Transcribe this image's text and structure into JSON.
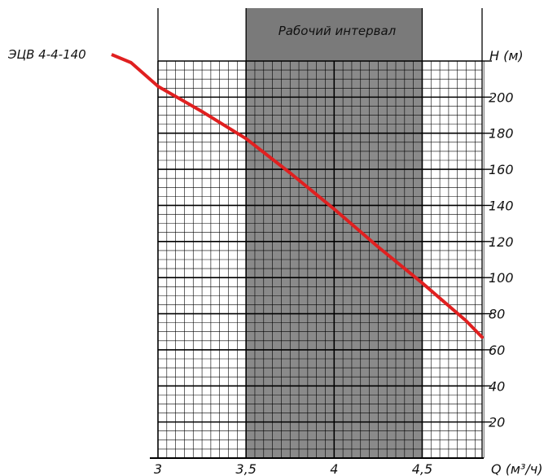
{
  "chart_data": {
    "type": "line",
    "band_label": "Рабочий интервал",
    "series": [
      {
        "name": "ЭЦВ 4-4-140",
        "x": [
          3.0,
          3.25,
          3.5,
          3.75,
          4.0,
          4.25,
          4.5,
          4.75,
          4.84
        ],
        "y": [
          206,
          192,
          177,
          158,
          138,
          117,
          97,
          76,
          67
        ]
      }
    ],
    "working_range": [
      3.5,
      4.5
    ],
    "x_ticks": [
      "3",
      "3,5",
      "4",
      "4,5"
    ],
    "x_tick_values": [
      3.0,
      3.5,
      4.0,
      4.5
    ],
    "y_ticks": [
      "20",
      "40",
      "60",
      "80",
      "100",
      "120",
      "140",
      "160",
      "180",
      "200"
    ],
    "y_tick_values": [
      20,
      40,
      60,
      80,
      100,
      120,
      140,
      160,
      180,
      200
    ],
    "xlabel": "Q",
    "xunit": "(м³/ч)",
    "ylabel": "H (м)",
    "xlim": [
      3.0,
      4.84
    ],
    "ylim": [
      0,
      220
    ],
    "grid": true,
    "colors": {
      "curve": "#e02020",
      "band": "#8a8a8a",
      "band_top": "#7a7a7a",
      "grid": "#000000"
    }
  }
}
